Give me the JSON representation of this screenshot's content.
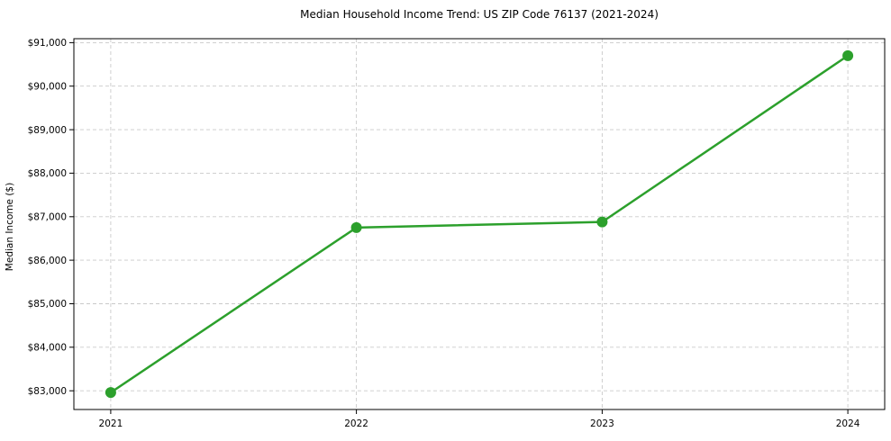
{
  "chart_data": {
    "type": "line",
    "title": "Median Household Income Trend: US ZIP Code 76137 (2021-2024)",
    "xlabel": "",
    "ylabel": "Median Income ($)",
    "x": [
      2021,
      2022,
      2023,
      2024
    ],
    "x_tick_labels": [
      "2021",
      "2022",
      "2023",
      "2024"
    ],
    "values": [
      82960,
      86750,
      86880,
      90700
    ],
    "y_ticks": [
      83000,
      84000,
      85000,
      86000,
      87000,
      88000,
      89000,
      90000,
      91000
    ],
    "y_tick_labels": [
      "$83,000",
      "$84,000",
      "$85,000",
      "$86,000",
      "$87,000",
      "$88,000",
      "$89,000",
      "$90,000",
      "$91,000"
    ],
    "xlim": [
      2020.85,
      2024.15
    ],
    "ylim": [
      82570,
      91090
    ],
    "grid": true,
    "grid_style": "dashed",
    "legend": "none",
    "line_color": "#2ca02c",
    "marker": "circle",
    "marker_color": "#2ca02c",
    "grid_color": "#c9c9c9",
    "spine_color": "#000000",
    "background_color": "#ffffff"
  }
}
